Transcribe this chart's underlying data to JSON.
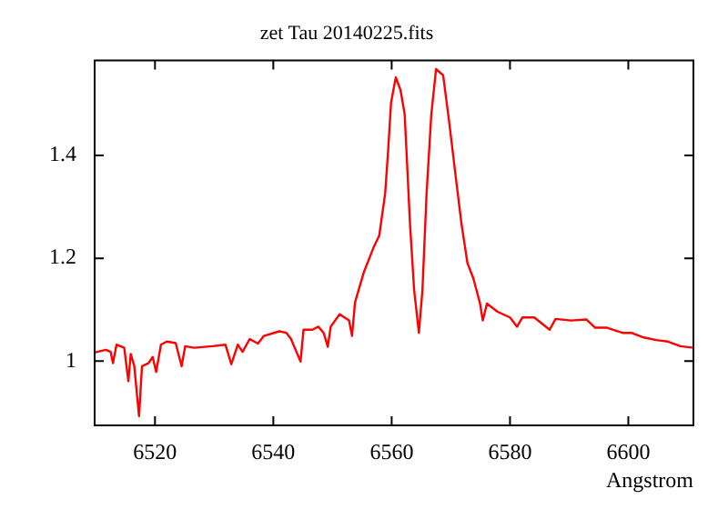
{
  "chart_data": {
    "type": "line",
    "title": "zet Tau 20140225.fits",
    "xlabel": "Angstrom",
    "color": "#ff0000",
    "grid": false,
    "legend": false,
    "marker": "none",
    "line_style": "solid",
    "xlim": [
      6509.8,
      6611
    ],
    "xticks": [
      6520,
      6540,
      6560,
      6580,
      6600
    ],
    "ylim": [
      0.875,
      1.585
    ],
    "yticks": [
      1,
      1.2,
      1.4
    ],
    "x": [
      6509.9,
      6511.7,
      6512.5,
      6512.9,
      6513.5,
      6514.8,
      6515.5,
      6515.9,
      6516.5,
      6517.3,
      6517.8,
      6518.9,
      6519.6,
      6520.2,
      6521.0,
      6522.0,
      6523.5,
      6524.5,
      6525.1,
      6526.6,
      6529.7,
      6531.9,
      6532.9,
      6534.0,
      6534.8,
      6536.0,
      6537.4,
      6538.4,
      6541.0,
      6542.2,
      6543.0,
      6544.6,
      6545.1,
      6546.6,
      6547.6,
      6548.5,
      6549.2,
      6549.7,
      6551.2,
      6552.8,
      6553.3,
      6553.8,
      6555.3,
      6556.9,
      6557.9,
      6558.9,
      6559.4,
      6559.9,
      6560.7,
      6561.5,
      6562.2,
      6563.1,
      6563.8,
      6564.6,
      6565.2,
      6565.9,
      6566.7,
      6567.5,
      6568.7,
      6569.7,
      6570.8,
      6571.8,
      6572.8,
      6573.8,
      6574.9,
      6575.4,
      6576.1,
      6577.9,
      6580.0,
      6581.2,
      6582.1,
      6584.1,
      6586.7,
      6587.7,
      6590.3,
      6592.9,
      6594.4,
      6596.4,
      6599.0,
      6600.5,
      6602.6,
      6604.7,
      6606.7,
      6608.8,
      6611
    ],
    "values": [
      1.017,
      1.022,
      1.018,
      0.996,
      1.032,
      1.026,
      0.961,
      1.014,
      0.99,
      0.893,
      0.99,
      0.996,
      1.008,
      0.979,
      1.032,
      1.038,
      1.035,
      0.99,
      1.029,
      1.026,
      1.029,
      1.032,
      0.994,
      1.032,
      1.018,
      1.043,
      1.034,
      1.049,
      1.058,
      1.055,
      1.043,
      0.999,
      1.061,
      1.061,
      1.067,
      1.055,
      1.028,
      1.067,
      1.091,
      1.079,
      1.049,
      1.114,
      1.173,
      1.22,
      1.244,
      1.326,
      1.409,
      1.503,
      1.552,
      1.527,
      1.48,
      1.267,
      1.138,
      1.055,
      1.138,
      1.326,
      1.48,
      1.568,
      1.556,
      1.467,
      1.361,
      1.267,
      1.191,
      1.161,
      1.114,
      1.079,
      1.112,
      1.096,
      1.085,
      1.067,
      1.085,
      1.085,
      1.061,
      1.082,
      1.079,
      1.081,
      1.065,
      1.065,
      1.055,
      1.055,
      1.046,
      1.041,
      1.038,
      1.029,
      1.026
    ]
  }
}
